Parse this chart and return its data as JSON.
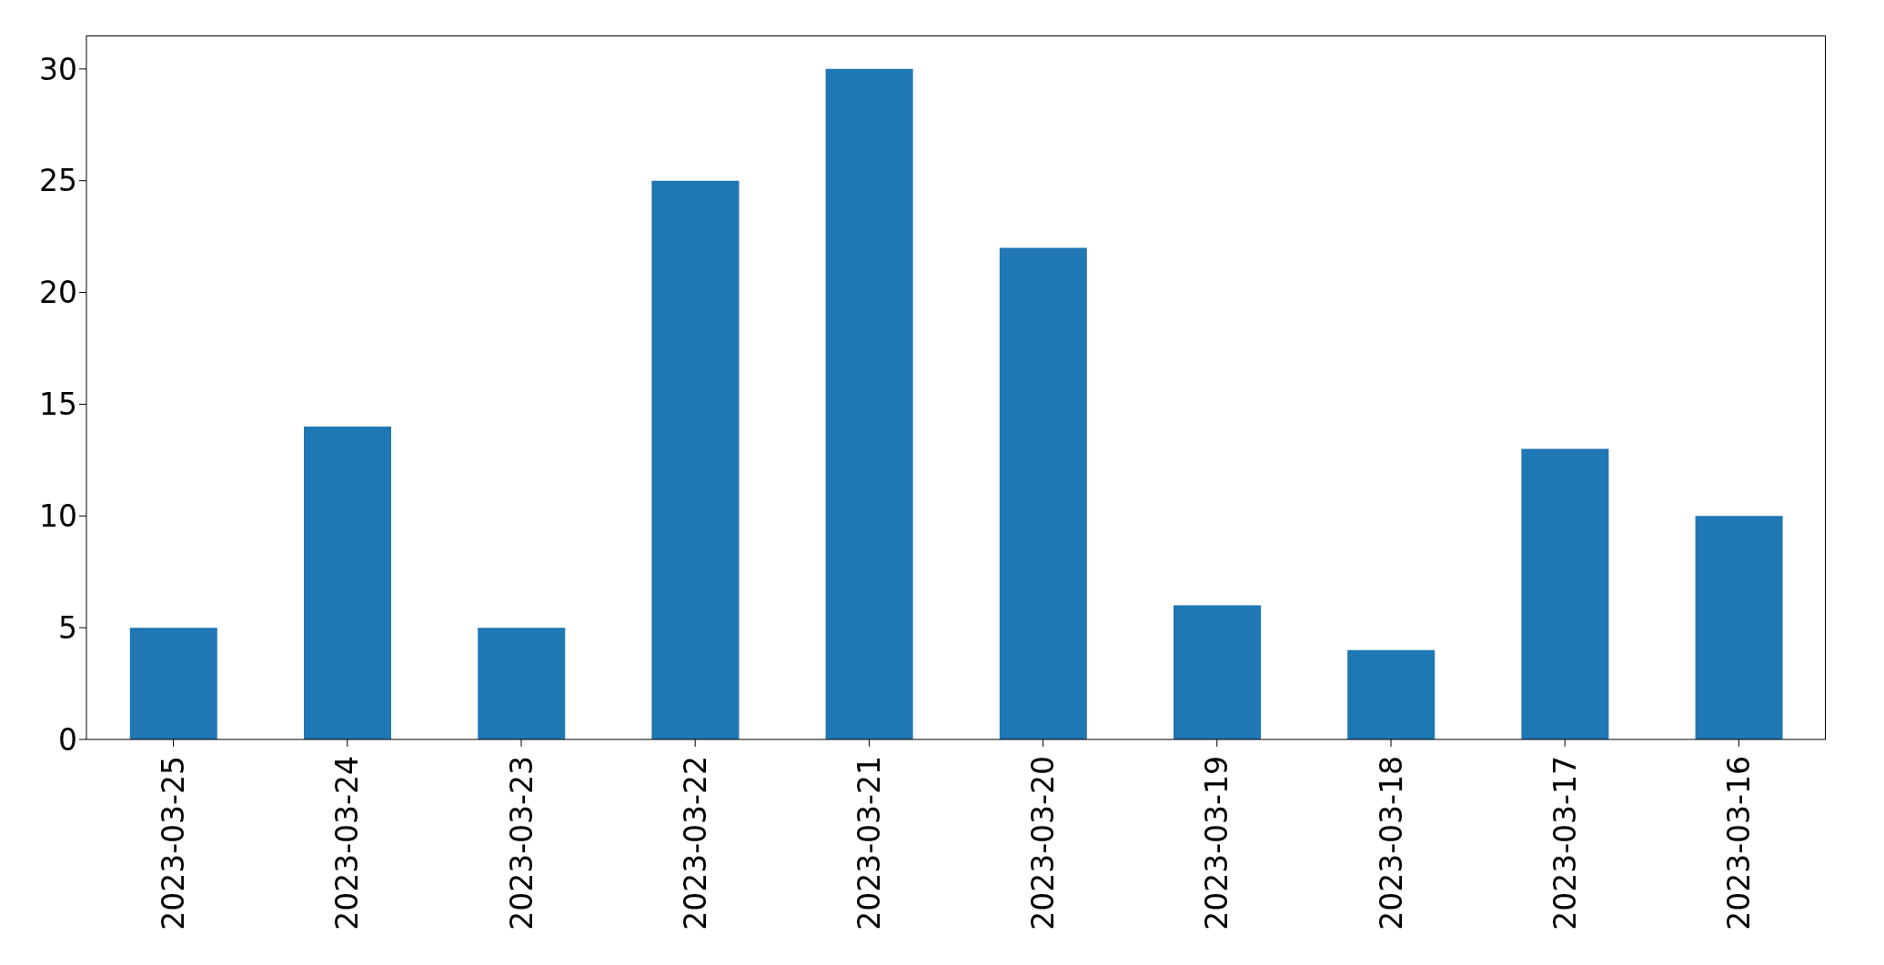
{
  "chart_data": {
    "type": "bar",
    "categories": [
      "2023-03-25",
      "2023-03-24",
      "2023-03-23",
      "2023-03-22",
      "2023-03-21",
      "2023-03-20",
      "2023-03-19",
      "2023-03-18",
      "2023-03-17",
      "2023-03-16"
    ],
    "values": [
      5,
      14,
      5,
      25,
      30,
      22,
      6,
      4,
      13,
      10
    ],
    "color": "#1f77b4",
    "ylim": [
      0,
      31.5
    ],
    "yticks": [
      0,
      5,
      10,
      15,
      20,
      25,
      30
    ]
  }
}
